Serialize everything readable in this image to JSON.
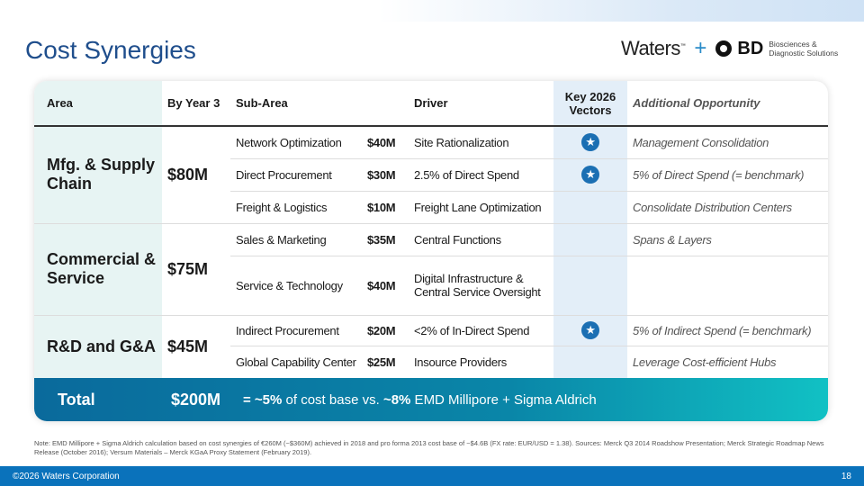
{
  "title": "Cost Synergies",
  "logo": {
    "waters": "Waters",
    "tm": "™",
    "plus": "+",
    "bd": "BD",
    "bd_sub1": "Biosciences &",
    "bd_sub2": "Diagnostic Solutions"
  },
  "headers": {
    "area": "Area",
    "year": "By Year 3",
    "sub": "Sub-Area",
    "driver": "Driver",
    "key": "Key 2026 Vectors",
    "opp": "Additional Opportunity"
  },
  "groups": [
    {
      "area": "Mfg. & Supply Chain",
      "year": "$80M",
      "rows": [
        {
          "sub": "Network Optimization",
          "amt": "$40M",
          "driver": "Site Rationalization",
          "key": true,
          "opp": "Management Consolidation"
        },
        {
          "sub": "Direct Procurement",
          "amt": "$30M",
          "driver": "2.5% of Direct Spend",
          "key": true,
          "opp": "5% of Direct Spend (= benchmark)"
        },
        {
          "sub": "Freight & Logistics",
          "amt": "$10M",
          "driver": "Freight Lane Optimization",
          "key": false,
          "opp": "Consolidate Distribution Centers"
        }
      ]
    },
    {
      "area": "Commercial & Service",
      "year": "$75M",
      "rows": [
        {
          "sub": "Sales & Marketing",
          "amt": "$35M",
          "driver": "Central Functions",
          "key": false,
          "opp": "Spans & Layers"
        },
        {
          "sub": "Service & Technology",
          "amt": "$40M",
          "driver": "Digital Infrastructure & Central Service Oversight",
          "key": false,
          "opp": ""
        }
      ]
    },
    {
      "area": "R&D and G&A",
      "year": "$45M",
      "rows": [
        {
          "sub": "Indirect Procurement",
          "amt": "$20M",
          "driver": "<2% of In-Direct Spend",
          "key": true,
          "opp": "5% of Indirect Spend (= benchmark)"
        },
        {
          "sub": "Global Capability Center",
          "amt": "$25M",
          "driver": "Insource Providers",
          "key": false,
          "opp": "Leverage Cost-efficient Hubs"
        }
      ]
    }
  ],
  "total": {
    "label": "Total",
    "value": "$200M",
    "pre": "= ~5%",
    "mid": " of cost base vs. ",
    "bold2": "~8%",
    "post": " EMD Millipore + Sigma Aldrich"
  },
  "note": "Note: EMD Millipore + Sigma Aldrich calculation based on cost synergies of €260M (~$360M) achieved in 2018 and pro forma 2013 cost base of ~$4.6B (FX rate: EUR/USD = 1.38). Sources: Merck Q3 2014 Roadshow Presentation; Merck Strategic Roadmap News Release (October 2016); Versum Materials – Merck KGaA Proxy Statement (February 2019).",
  "footer": {
    "copyright": "©2026 Waters Corporation",
    "page": "18"
  },
  "colors": {
    "accent": "#0a72bb",
    "star": "#1b6fb3",
    "area_bg": "#e7f4f3",
    "key_bg": "#e3eef8"
  }
}
